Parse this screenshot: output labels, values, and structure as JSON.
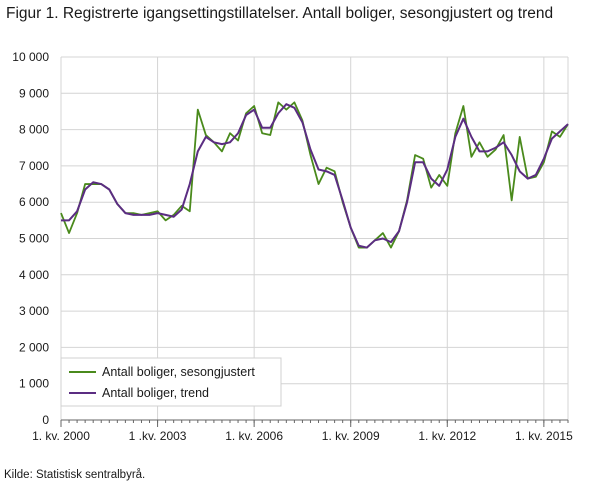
{
  "title": "Figur 1. Registrerte igangsettingstillatelser. Antall boliger, sesongjustert og trend",
  "source": "Kilde: Statistisk sentralbyrå.",
  "colors": {
    "seasonal": "#4a8a1c",
    "trend": "#5b2d82",
    "grid": "#d4d4d4",
    "axis": "#666666"
  },
  "chart_data": {
    "type": "line",
    "title": "Figur 1. Registrerte igangsettingstillatelser. Antall boliger, sesongjustert og trend",
    "xlabel": "",
    "ylabel": "",
    "ylim": [
      0,
      10000
    ],
    "yticks": [
      0,
      1000,
      2000,
      3000,
      4000,
      5000,
      6000,
      7000,
      8000,
      9000,
      10000
    ],
    "ytick_labels": [
      "0",
      "1 000",
      "2 000",
      "3 000",
      "4 000",
      "5 000",
      "6 000",
      "7 000",
      "8 000",
      "9 000",
      "10 000"
    ],
    "x_start": "2000K1",
    "x": [
      "2000K1",
      "2000K2",
      "2000K3",
      "2000K4",
      "2001K1",
      "2001K2",
      "2001K3",
      "2001K4",
      "2002K1",
      "2002K2",
      "2002K3",
      "2002K4",
      "2003K1",
      "2003K2",
      "2003K3",
      "2003K4",
      "2004K1",
      "2004K2",
      "2004K3",
      "2004K4",
      "2005K1",
      "2005K2",
      "2005K3",
      "2005K4",
      "2006K1",
      "2006K2",
      "2006K3",
      "2006K4",
      "2007K1",
      "2007K2",
      "2007K3",
      "2007K4",
      "2008K1",
      "2008K2",
      "2008K3",
      "2008K4",
      "2009K1",
      "2009K2",
      "2009K3",
      "2009K4",
      "2010K1",
      "2010K2",
      "2010K3",
      "2010K4",
      "2011K1",
      "2011K2",
      "2011K3",
      "2011K4",
      "2012K1",
      "2012K2",
      "2012K3",
      "2012K4",
      "2013K1",
      "2013K2",
      "2013K3",
      "2013K4",
      "2014K1",
      "2014K2",
      "2014K3",
      "2014K4",
      "2015K1",
      "2015K2",
      "2015K3",
      "2015K4"
    ],
    "xtick_labels": [
      {
        "index": 0,
        "label": "1. kv. 2000"
      },
      {
        "index": 12,
        "label": "1 .kv. 2003"
      },
      {
        "index": 24,
        "label": "1. kv. 2006"
      },
      {
        "index": 36,
        "label": "1. kv. 2009"
      },
      {
        "index": 48,
        "label": "1. kv. 2012"
      },
      {
        "index": 60,
        "label": "1. kv. 2015"
      }
    ],
    "legend_position": "bottom-left",
    "series": [
      {
        "name": "Antall boliger, sesongjustert",
        "values": [
          5700,
          5150,
          5700,
          6500,
          6500,
          6500,
          6350,
          5950,
          5700,
          5700,
          5650,
          5700,
          5750,
          5500,
          5650,
          5900,
          5750,
          8550,
          7850,
          7650,
          7400,
          7900,
          7700,
          8450,
          8650,
          7900,
          7850,
          8750,
          8550,
          8750,
          8250,
          7300,
          6500,
          6950,
          6850,
          6000,
          5300,
          4750,
          4750,
          4950,
          5150,
          4750,
          5200,
          6050,
          7300,
          7200,
          6400,
          6750,
          6450,
          7900,
          8650,
          7250,
          7650,
          7250,
          7450,
          7850,
          6050,
          7800,
          6650,
          6700,
          7100,
          7950,
          7800,
          8150
        ]
      },
      {
        "name": "Antall boliger, trend",
        "values": [
          5500,
          5500,
          5750,
          6350,
          6550,
          6500,
          6350,
          5950,
          5700,
          5650,
          5650,
          5650,
          5700,
          5650,
          5600,
          5800,
          6500,
          7400,
          7800,
          7650,
          7600,
          7650,
          7900,
          8400,
          8550,
          8050,
          8050,
          8450,
          8700,
          8600,
          8200,
          7450,
          6900,
          6850,
          6750,
          6050,
          5300,
          4800,
          4750,
          4950,
          5000,
          4900,
          5200,
          6000,
          7100,
          7100,
          6650,
          6450,
          6900,
          7800,
          8300,
          7800,
          7400,
          7400,
          7500,
          7650,
          7300,
          6850,
          6650,
          6750,
          7200,
          7750,
          7950,
          8150
        ]
      }
    ]
  }
}
